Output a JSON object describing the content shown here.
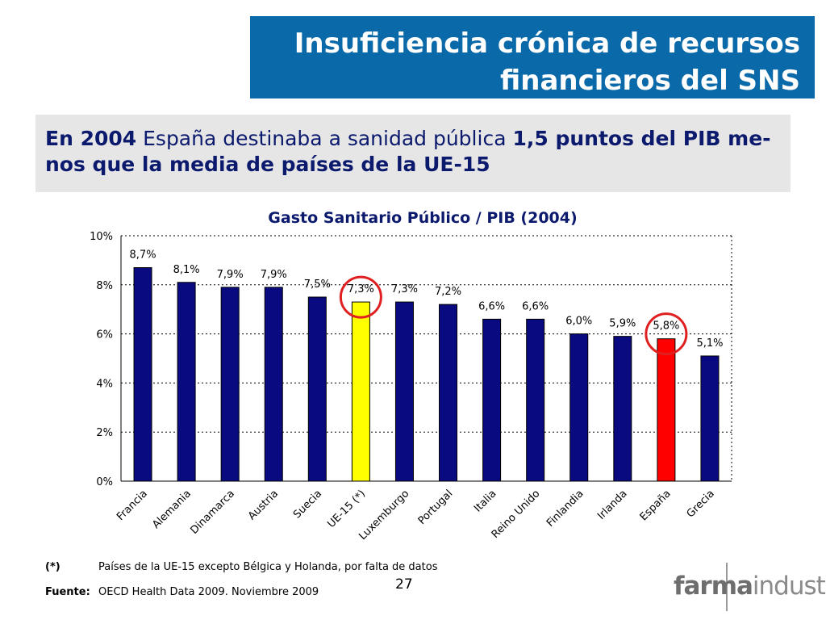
{
  "header": {
    "title_line1": "Insuficiencia crónica de recursos",
    "title_line2": "financieros del SNS",
    "title_bg": "#0a69a8"
  },
  "subtitle": {
    "l1_bold_a": "En 2004",
    "l1_normal": " España destinaba a sanidad pública ",
    "l1_bold_b": "1,5 puntos del PIB me-",
    "l2_bold": "nos que la media de países de la UE-15"
  },
  "chart_data": {
    "type": "bar",
    "title": "Gasto Sanitario Público / PIB (2004)",
    "categories": [
      "Francia",
      "Alemania",
      "Dinamarca",
      "Austria",
      "Suecia",
      "UE-15 (*)",
      "Luxemburgo",
      "Portugal",
      "Italia",
      "Reino Unido",
      "Finlandia",
      "Irlanda",
      "España",
      "Grecia"
    ],
    "values": [
      8.7,
      8.1,
      7.9,
      7.9,
      7.5,
      7.3,
      7.3,
      7.2,
      6.6,
      6.6,
      6.0,
      5.9,
      5.8,
      5.1
    ],
    "labels": [
      "8,7%",
      "8,1%",
      "7,9%",
      "7,9%",
      "7,5%",
      "7,3%",
      "7,3%",
      "7,2%",
      "6,6%",
      "6,6%",
      "6,0%",
      "5,9%",
      "5,8%",
      "5,1%"
    ],
    "yticks": [
      "0%",
      "2%",
      "4%",
      "6%",
      "8%",
      "10%"
    ],
    "ylim": [
      0,
      10
    ],
    "grid": true,
    "colors": {
      "default": "#0a0a80",
      "UE-15 (*)": "#ffff00",
      "España": "#ff0000"
    },
    "highlight_circles": [
      "UE-15 (*)",
      "España"
    ],
    "circle_color": "#e02020"
  },
  "footer": {
    "note_label": "(*)",
    "note_text": "Países de la UE-15 excepto Bélgica y Holanda, por falta de datos",
    "source_label": "Fuente:",
    "source_text": "OECD Health Data 2009. Noviembre 2009",
    "page_number": "27",
    "logo_bold": "farma",
    "logo_light": "industria"
  }
}
